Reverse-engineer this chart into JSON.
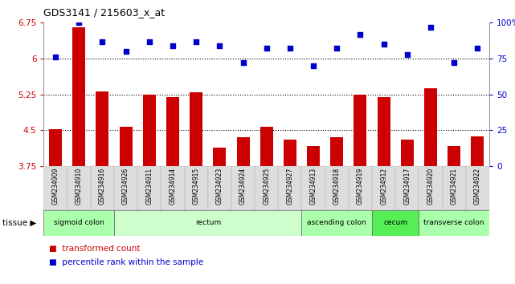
{
  "title": "GDS3141 / 215603_x_at",
  "samples": [
    "GSM234909",
    "GSM234910",
    "GSM234916",
    "GSM234926",
    "GSM234911",
    "GSM234914",
    "GSM234915",
    "GSM234923",
    "GSM234924",
    "GSM234925",
    "GSM234927",
    "GSM234913",
    "GSM234918",
    "GSM234919",
    "GSM234912",
    "GSM234917",
    "GSM234920",
    "GSM234921",
    "GSM234922"
  ],
  "bar_values": [
    4.52,
    6.65,
    5.32,
    4.57,
    5.24,
    5.19,
    5.3,
    4.14,
    4.35,
    4.57,
    4.3,
    4.17,
    4.35,
    5.25,
    5.19,
    4.3,
    5.38,
    4.17,
    4.37
  ],
  "dot_values": [
    76,
    100,
    87,
    80,
    87,
    84,
    87,
    84,
    72,
    82,
    82,
    70,
    82,
    92,
    85,
    78,
    97,
    72,
    82
  ],
  "bar_color": "#cc0000",
  "dot_color": "#0000cc",
  "ylim_left": [
    3.75,
    6.75
  ],
  "ylim_right": [
    0,
    100
  ],
  "yticks_left": [
    3.75,
    4.5,
    5.25,
    6.0,
    6.75
  ],
  "ytick_labels_left": [
    "3.75",
    "4.5",
    "5.25",
    "6",
    "6.75"
  ],
  "yticks_right": [
    0,
    25,
    50,
    75,
    100
  ],
  "ytick_labels_right": [
    "0",
    "25",
    "50",
    "75",
    "100%"
  ],
  "hlines": [
    6.0,
    5.25,
    4.5
  ],
  "bar_baseline": 3.75,
  "tissue_groups": [
    {
      "label": "sigmoid colon",
      "start": 0,
      "end": 3,
      "color": "#aaffaa"
    },
    {
      "label": "rectum",
      "start": 3,
      "end": 11,
      "color": "#ccffcc"
    },
    {
      "label": "ascending colon",
      "start": 11,
      "end": 14,
      "color": "#aaffaa"
    },
    {
      "label": "cecum",
      "start": 14,
      "end": 16,
      "color": "#55ee55"
    },
    {
      "label": "transverse colon",
      "start": 16,
      "end": 19,
      "color": "#aaffaa"
    }
  ],
  "legend_bar_label": "transformed count",
  "legend_dot_label": "percentile rank within the sample",
  "tissue_label": "tissue",
  "background_color": "#ffffff",
  "xticklabel_bg": "#dddddd",
  "bar_width": 0.55
}
